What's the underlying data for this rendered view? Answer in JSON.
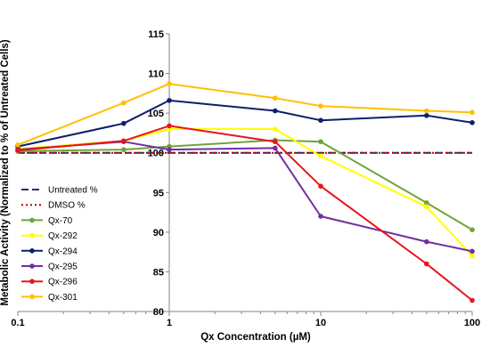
{
  "chart_data": {
    "type": "line",
    "title": "",
    "xlabel": "Qx Concentration (µM)",
    "ylabel": "Metabolic Activity (Normalized to % of Untreated Cells)",
    "x_scale": "log",
    "xlim": [
      0.1,
      100
    ],
    "ylim": [
      80,
      115
    ],
    "x_ticks": [
      "0.1",
      "1",
      "10",
      "100"
    ],
    "y_ticks": [
      "80",
      "85",
      "90",
      "95",
      "100",
      "105",
      "110",
      "115"
    ],
    "grid": false,
    "legend_position": "left",
    "x": [
      0.1,
      0.5,
      1,
      5,
      10,
      50,
      100
    ],
    "series": [
      {
        "name": "Untreated %",
        "style": "dashed",
        "color": "#1f3864",
        "values": [
          100,
          100,
          100,
          100,
          100,
          100,
          100
        ]
      },
      {
        "name": "DMSO %",
        "style": "dotted",
        "color": "#c00000",
        "values": [
          100,
          100,
          100,
          100,
          100,
          100,
          100
        ]
      },
      {
        "name": "Qx-70",
        "style": "solid",
        "color": "#70a33a",
        "values": [
          100.2,
          100.4,
          100.8,
          101.6,
          101.4,
          93.7,
          90.3
        ]
      },
      {
        "name": "Qx-292",
        "style": "solid",
        "color": "#ffff00",
        "values": [
          100.5,
          101.5,
          103.0,
          103.0,
          99.6,
          93.2,
          87.0
        ]
      },
      {
        "name": "Qx-294",
        "style": "solid",
        "color": "#0a1f6b",
        "values": [
          100.8,
          103.7,
          106.6,
          105.3,
          104.1,
          104.7,
          103.8
        ]
      },
      {
        "name": "Qx-295",
        "style": "solid",
        "color": "#7030a0",
        "values": [
          100.4,
          101.4,
          100.4,
          100.6,
          92.0,
          88.8,
          87.6
        ]
      },
      {
        "name": "Qx-296",
        "style": "solid",
        "color": "#e8141b",
        "values": [
          100.3,
          101.5,
          103.4,
          101.4,
          95.8,
          86.0,
          81.4
        ]
      },
      {
        "name": "Qx-301",
        "style": "solid",
        "color": "#ffc000",
        "values": [
          101.0,
          106.3,
          108.7,
          106.9,
          105.9,
          105.3,
          105.1
        ]
      }
    ]
  }
}
